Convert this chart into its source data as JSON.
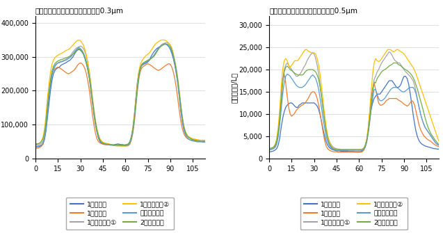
{
  "title_left": "測定点ごとの粒子拡散状況確認：0.3μm",
  "title_right": "測定点ごとの粒子拡散状況確認：0.5μm",
  "ylabel": "粒子数（個/L）",
  "xticks": [
    0,
    15,
    30,
    45,
    60,
    75,
    90,
    105
  ],
  "legend_labels": [
    "1階客席南",
    "1階客席北",
    "1階客席中央①",
    "1階客席中央②",
    "ステージ中央",
    "2階客席中央"
  ],
  "colors": [
    "#4472c4",
    "#ed7d31",
    "#a5a5a5",
    "#ffc000",
    "#5b9bd5",
    "#70ad47"
  ],
  "left_ylim": [
    0,
    420000
  ],
  "left_yticks": [
    0,
    100000,
    200000,
    300000,
    400000
  ],
  "right_ylim": [
    0,
    32000
  ],
  "right_yticks": [
    0,
    5000,
    10000,
    15000,
    20000,
    25000,
    30000
  ],
  "x": [
    0,
    1,
    2,
    3,
    4,
    5,
    6,
    7,
    8,
    9,
    10,
    11,
    12,
    13,
    14,
    15,
    16,
    17,
    18,
    19,
    20,
    21,
    22,
    23,
    24,
    25,
    26,
    27,
    28,
    29,
    30,
    31,
    32,
    33,
    34,
    35,
    36,
    37,
    38,
    39,
    40,
    41,
    42,
    43,
    44,
    45,
    46,
    47,
    48,
    49,
    50,
    51,
    52,
    53,
    54,
    55,
    56,
    57,
    58,
    59,
    60,
    61,
    62,
    63,
    64,
    65,
    66,
    67,
    68,
    69,
    70,
    71,
    72,
    73,
    74,
    75,
    76,
    77,
    78,
    79,
    80,
    81,
    82,
    83,
    84,
    85,
    86,
    87,
    88,
    89,
    90,
    91,
    92,
    93,
    94,
    95,
    96,
    97,
    98,
    99,
    100,
    101,
    102,
    103,
    104,
    105,
    106,
    107,
    108,
    109,
    110,
    111,
    112,
    113
  ],
  "left_series": {
    "south": [
      35000,
      34000,
      35000,
      36000,
      38000,
      42000,
      55000,
      80000,
      120000,
      160000,
      200000,
      230000,
      250000,
      260000,
      265000,
      268000,
      270000,
      275000,
      278000,
      280000,
      282000,
      285000,
      288000,
      290000,
      295000,
      300000,
      308000,
      315000,
      320000,
      322000,
      320000,
      315000,
      308000,
      295000,
      280000,
      260000,
      235000,
      200000,
      165000,
      130000,
      100000,
      78000,
      60000,
      50000,
      45000,
      43000,
      42000,
      41000,
      41000,
      40000,
      40000,
      40000,
      40000,
      41000,
      42000,
      43000,
      42000,
      41000,
      41000,
      40000,
      40000,
      41000,
      43000,
      50000,
      65000,
      90000,
      130000,
      180000,
      225000,
      255000,
      270000,
      275000,
      278000,
      280000,
      282000,
      285000,
      290000,
      300000,
      308000,
      315000,
      320000,
      325000,
      328000,
      330000,
      335000,
      338000,
      340000,
      338000,
      335000,
      330000,
      322000,
      310000,
      295000,
      275000,
      250000,
      220000,
      180000,
      140000,
      110000,
      88000,
      75000,
      68000,
      63000,
      60000,
      58000,
      56000,
      55000,
      54000,
      53000,
      52000,
      51000,
      50000,
      50000,
      50000
    ],
    "north": [
      30000,
      30000,
      31000,
      33000,
      36000,
      42000,
      60000,
      95000,
      145000,
      190000,
      225000,
      250000,
      260000,
      265000,
      268000,
      270000,
      268000,
      265000,
      262000,
      258000,
      255000,
      252000,
      250000,
      252000,
      255000,
      258000,
      262000,
      268000,
      275000,
      280000,
      282000,
      280000,
      275000,
      265000,
      250000,
      228000,
      200000,
      165000,
      130000,
      100000,
      75000,
      58000,
      50000,
      46000,
      44000,
      42000,
      41000,
      41000,
      40000,
      40000,
      39000,
      39000,
      38000,
      38000,
      38000,
      38000,
      38000,
      38000,
      38000,
      38000,
      37000,
      37000,
      38000,
      42000,
      55000,
      75000,
      108000,
      155000,
      200000,
      235000,
      258000,
      268000,
      272000,
      275000,
      278000,
      280000,
      278000,
      275000,
      272000,
      268000,
      265000,
      262000,
      260000,
      262000,
      265000,
      268000,
      272000,
      275000,
      278000,
      280000,
      278000,
      270000,
      255000,
      235000,
      208000,
      175000,
      140000,
      110000,
      88000,
      73000,
      65000,
      60000,
      57000,
      55000,
      54000,
      53000,
      52000,
      51000,
      51000,
      50000,
      50000,
      50000,
      50000,
      50000
    ],
    "center1": [
      40000,
      40000,
      41000,
      42000,
      45000,
      50000,
      65000,
      95000,
      140000,
      185000,
      220000,
      248000,
      265000,
      275000,
      280000,
      283000,
      285000,
      287000,
      288000,
      290000,
      292000,
      295000,
      298000,
      302000,
      308000,
      315000,
      320000,
      325000,
      328000,
      330000,
      332000,
      330000,
      325000,
      315000,
      300000,
      280000,
      255000,
      220000,
      180000,
      145000,
      112000,
      88000,
      70000,
      58000,
      50000,
      47000,
      45000,
      44000,
      43000,
      42000,
      41000,
      40000,
      39000,
      38000,
      37000,
      37000,
      37000,
      37000,
      37000,
      37000,
      37000,
      38000,
      40000,
      47000,
      60000,
      82000,
      118000,
      162000,
      208000,
      245000,
      268000,
      278000,
      282000,
      285000,
      287000,
      290000,
      292000,
      295000,
      298000,
      302000,
      310000,
      318000,
      325000,
      330000,
      335000,
      338000,
      340000,
      342000,
      342000,
      340000,
      335000,
      325000,
      308000,
      288000,
      265000,
      235000,
      198000,
      158000,
      122000,
      96000,
      80000,
      70000,
      65000,
      62000,
      60000,
      58000,
      57000,
      56000,
      55000,
      54000,
      53000,
      52000,
      52000,
      52000
    ],
    "center2": [
      42000,
      42000,
      43000,
      46000,
      52000,
      62000,
      85000,
      125000,
      178000,
      220000,
      255000,
      278000,
      290000,
      298000,
      302000,
      305000,
      308000,
      310000,
      312000,
      315000,
      318000,
      320000,
      322000,
      325000,
      330000,
      335000,
      340000,
      345000,
      348000,
      350000,
      348000,
      342000,
      335000,
      322000,
      305000,
      282000,
      255000,
      220000,
      180000,
      145000,
      112000,
      88000,
      70000,
      58000,
      52000,
      48000,
      46000,
      45000,
      44000,
      43000,
      42000,
      41000,
      40000,
      39000,
      38000,
      37000,
      37000,
      37000,
      37000,
      37000,
      37000,
      38000,
      40000,
      47000,
      62000,
      88000,
      128000,
      175000,
      222000,
      258000,
      278000,
      288000,
      295000,
      300000,
      305000,
      308000,
      312000,
      318000,
      325000,
      332000,
      338000,
      342000,
      345000,
      348000,
      350000,
      350000,
      350000,
      348000,
      345000,
      340000,
      335000,
      325000,
      308000,
      285000,
      258000,
      228000,
      190000,
      152000,
      118000,
      93000,
      78000,
      70000,
      65000,
      62000,
      60000,
      58000,
      57000,
      56000,
      55000,
      55000,
      54000,
      54000,
      54000,
      54000
    ],
    "stage": [
      36000,
      36000,
      37000,
      38000,
      40000,
      45000,
      58000,
      85000,
      130000,
      175000,
      215000,
      245000,
      262000,
      272000,
      278000,
      282000,
      283000,
      285000,
      286000,
      288000,
      290000,
      292000,
      295000,
      298000,
      302000,
      308000,
      315000,
      320000,
      325000,
      328000,
      325000,
      320000,
      312000,
      300000,
      285000,
      265000,
      240000,
      208000,
      172000,
      138000,
      108000,
      83000,
      65000,
      54000,
      48000,
      45000,
      43000,
      42000,
      41000,
      40000,
      40000,
      40000,
      39000,
      39000,
      39000,
      39000,
      39000,
      38000,
      38000,
      38000,
      38000,
      38000,
      40000,
      45000,
      58000,
      80000,
      115000,
      158000,
      205000,
      242000,
      265000,
      275000,
      280000,
      283000,
      285000,
      288000,
      290000,
      295000,
      300000,
      305000,
      312000,
      318000,
      325000,
      330000,
      333000,
      335000,
      337000,
      337000,
      335000,
      330000,
      325000,
      315000,
      300000,
      280000,
      255000,
      222000,
      182000,
      142000,
      108000,
      84000,
      70000,
      62000,
      58000,
      55000,
      53000,
      52000,
      51000,
      50000,
      49000,
      49000,
      49000,
      49000,
      48000,
      48000
    ],
    "second_floor": [
      43000,
      43000,
      44000,
      46000,
      50000,
      58000,
      75000,
      108000,
      155000,
      198000,
      232000,
      258000,
      272000,
      280000,
      285000,
      288000,
      290000,
      292000,
      293000,
      295000,
      297000,
      298000,
      300000,
      302000,
      305000,
      308000,
      312000,
      318000,
      322000,
      325000,
      322000,
      318000,
      310000,
      298000,
      282000,
      262000,
      238000,
      205000,
      170000,
      136000,
      105000,
      82000,
      65000,
      54000,
      48000,
      45000,
      44000,
      43000,
      42000,
      42000,
      41000,
      41000,
      40000,
      40000,
      40000,
      40000,
      40000,
      40000,
      40000,
      40000,
      40000,
      41000,
      43000,
      48000,
      62000,
      85000,
      122000,
      165000,
      210000,
      248000,
      268000,
      278000,
      282000,
      285000,
      288000,
      290000,
      293000,
      295000,
      298000,
      302000,
      308000,
      315000,
      322000,
      328000,
      332000,
      335000,
      338000,
      338000,
      338000,
      335000,
      330000,
      320000,
      305000,
      285000,
      260000,
      230000,
      193000,
      155000,
      120000,
      94000,
      78000,
      68000,
      63000,
      60000,
      57000,
      55000,
      54000,
      53000,
      52000,
      51000,
      50000,
      50000,
      50000,
      50000
    ]
  },
  "right_series": {
    "south": [
      1500,
      1500,
      1600,
      1700,
      1900,
      2200,
      3000,
      4500,
      7000,
      9000,
      10500,
      11500,
      12000,
      12300,
      12500,
      12500,
      12200,
      11800,
      11500,
      11500,
      12000,
      12200,
      12500,
      12500,
      12500,
      12500,
      12500,
      12500,
      12500,
      12500,
      12500,
      12200,
      11800,
      11000,
      9800,
      8200,
      6500,
      5000,
      3800,
      3000,
      2500,
      2200,
      2000,
      1900,
      1800,
      1700,
      1700,
      1700,
      1600,
      1600,
      1600,
      1600,
      1600,
      1600,
      1600,
      1600,
      1600,
      1500,
      1500,
      1500,
      1500,
      1500,
      1700,
      2000,
      2800,
      4000,
      6000,
      8500,
      11000,
      12500,
      13500,
      14000,
      14500,
      14500,
      14500,
      15000,
      15500,
      16000,
      16500,
      17000,
      17500,
      17500,
      17500,
      17000,
      16500,
      16000,
      16000,
      16200,
      16800,
      17800,
      18500,
      18500,
      18000,
      16800,
      14800,
      12500,
      10000,
      7800,
      6000,
      4800,
      4000,
      3500,
      3200,
      3000,
      2800,
      2700,
      2600,
      2500,
      2400,
      2300,
      2200,
      2200,
      2100,
      2100
    ],
    "north": [
      2000,
      2000,
      2100,
      2300,
      2800,
      3800,
      6000,
      9500,
      14000,
      17500,
      19000,
      17000,
      14000,
      11500,
      10000,
      9500,
      9800,
      10200,
      10800,
      11200,
      11500,
      11800,
      12000,
      12200,
      12500,
      13000,
      13500,
      14200,
      14800,
      15000,
      15000,
      14500,
      13500,
      12000,
      10000,
      8000,
      5800,
      4000,
      2800,
      2200,
      1900,
      1700,
      1600,
      1500,
      1500,
      1500,
      1400,
      1400,
      1400,
      1400,
      1400,
      1400,
      1400,
      1400,
      1400,
      1400,
      1400,
      1400,
      1400,
      1400,
      1400,
      1400,
      1500,
      1800,
      2500,
      3800,
      6500,
      10000,
      13500,
      15800,
      17000,
      15500,
      14000,
      12500,
      12000,
      12000,
      12200,
      12500,
      13000,
      13200,
      13500,
      13500,
      13500,
      13500,
      13500,
      13500,
      13200,
      13000,
      12800,
      12500,
      12200,
      12000,
      11800,
      12000,
      12500,
      13000,
      12800,
      12000,
      10500,
      9000,
      7500,
      6500,
      5800,
      5200,
      4800,
      4500,
      4200,
      4000,
      3800,
      3500,
      3200,
      3000,
      2800,
      2700
    ],
    "center1": [
      2200,
      2200,
      2300,
      2500,
      2900,
      3800,
      5800,
      9000,
      13500,
      17500,
      20000,
      21000,
      21500,
      21000,
      20500,
      20000,
      19500,
      19000,
      18500,
      18500,
      18800,
      19200,
      19800,
      20500,
      21000,
      21800,
      22500,
      23000,
      23500,
      23800,
      23500,
      22500,
      21000,
      19000,
      16500,
      13800,
      11000,
      8500,
      6500,
      5000,
      4000,
      3300,
      2800,
      2500,
      2300,
      2200,
      2100,
      2100,
      2000,
      2000,
      2000,
      2000,
      2000,
      2000,
      2000,
      2000,
      2000,
      2000,
      2000,
      2000,
      2000,
      2000,
      2100,
      2300,
      2800,
      4000,
      6000,
      8800,
      12000,
      15000,
      17800,
      18500,
      19500,
      20000,
      20800,
      21500,
      22000,
      22500,
      23000,
      23500,
      24000,
      23800,
      23200,
      22500,
      22000,
      21800,
      21500,
      21500,
      21000,
      20500,
      20000,
      19500,
      19200,
      18800,
      18500,
      18000,
      17500,
      16500,
      15000,
      13200,
      11500,
      10000,
      8800,
      7800,
      7000,
      6500,
      6000,
      5500,
      5000,
      4500,
      4000,
      3500,
      3200,
      3000
    ],
    "center2": [
      2200,
      2200,
      2300,
      2600,
      3200,
      4500,
      7000,
      11000,
      16000,
      20000,
      22000,
      22500,
      22000,
      21000,
      20500,
      21000,
      21500,
      22000,
      22000,
      22000,
      22500,
      23000,
      23500,
      24000,
      24500,
      24500,
      24200,
      24000,
      23800,
      23800,
      23800,
      23500,
      22500,
      21000,
      18800,
      16000,
      12800,
      9800,
      7200,
      5200,
      3800,
      3000,
      2500,
      2200,
      2100,
      2000,
      1900,
      1900,
      1900,
      1900,
      1900,
      1900,
      1900,
      1900,
      1900,
      1900,
      1900,
      1900,
      1900,
      1900,
      1900,
      1900,
      2000,
      2200,
      2800,
      4200,
      6800,
      10500,
      15000,
      18800,
      21500,
      22500,
      22000,
      21800,
      22000,
      22500,
      23000,
      23500,
      24000,
      24500,
      24500,
      24500,
      24200,
      24000,
      24200,
      24500,
      24500,
      24200,
      24000,
      23800,
      23500,
      23000,
      22500,
      22000,
      21500,
      21000,
      20500,
      19800,
      19000,
      18000,
      17000,
      16000,
      15000,
      14000,
      13000,
      12000,
      11000,
      10000,
      9000,
      8000,
      7000,
      6000,
      5000,
      4000
    ],
    "stage": [
      2000,
      2000,
      2100,
      2200,
      2500,
      3200,
      4800,
      7500,
      11000,
      14500,
      17000,
      18500,
      19000,
      18800,
      18500,
      18000,
      17500,
      17000,
      16500,
      16200,
      16000,
      16000,
      16000,
      16200,
      16500,
      17000,
      17500,
      18000,
      18500,
      18800,
      18500,
      18000,
      17000,
      15500,
      13500,
      11200,
      8800,
      6800,
      5000,
      3800,
      3000,
      2500,
      2200,
      2000,
      1900,
      1800,
      1800,
      1800,
      1800,
      1800,
      1800,
      1800,
      1800,
      1700,
      1700,
      1700,
      1700,
      1700,
      1700,
      1700,
      1700,
      1700,
      1800,
      2000,
      2500,
      3500,
      5500,
      8000,
      11000,
      13500,
      15500,
      15500,
      14500,
      13500,
      13000,
      13000,
      13200,
      13500,
      14000,
      14500,
      15000,
      15500,
      15800,
      16000,
      16000,
      16000,
      15800,
      15500,
      15200,
      15000,
      15000,
      15200,
      15500,
      15800,
      16000,
      16000,
      16000,
      15500,
      14500,
      13000,
      11500,
      10000,
      8800,
      7800,
      7000,
      6500,
      6000,
      5500,
      5000,
      4500,
      4000,
      3500,
      3200,
      3000
    ],
    "second_floor": [
      2300,
      2300,
      2400,
      2600,
      3000,
      3900,
      5800,
      8800,
      13000,
      17000,
      19500,
      20500,
      20800,
      20500,
      20000,
      19800,
      19500,
      19200,
      19000,
      18800,
      18800,
      18800,
      18800,
      19000,
      19500,
      19800,
      20000,
      20000,
      20000,
      20000,
      19800,
      19500,
      18800,
      17800,
      16000,
      13800,
      11000,
      8500,
      6200,
      4500,
      3400,
      2800,
      2400,
      2200,
      2100,
      2000,
      2000,
      2000,
      2000,
      2000,
      2000,
      2000,
      2000,
      2000,
      2000,
      2000,
      2000,
      2000,
      2000,
      2000,
      2000,
      2000,
      2000,
      2200,
      2800,
      4000,
      6000,
      8800,
      12000,
      15000,
      17200,
      17000,
      18000,
      18500,
      19000,
      19500,
      19800,
      20000,
      20200,
      20500,
      20800,
      21000,
      21200,
      21500,
      21500,
      21500,
      21200,
      21000,
      20800,
      20500,
      20200,
      20000,
      19800,
      19500,
      19200,
      18800,
      18200,
      17500,
      16500,
      15500,
      14200,
      13000,
      11800,
      10500,
      9200,
      8000,
      7000,
      6200,
      5500,
      5000,
      4500,
      4000,
      3600,
      3200
    ]
  }
}
